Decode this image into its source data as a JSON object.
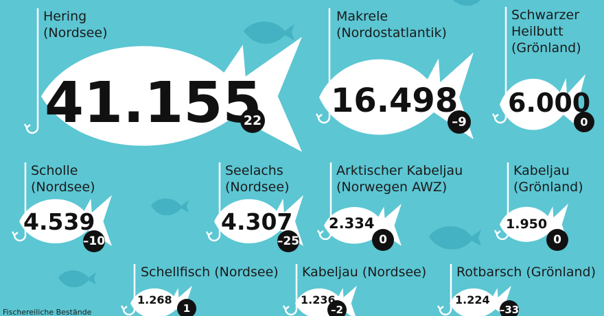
{
  "items": [
    {
      "label": [
        "Hering",
        "(Nordsee)"
      ],
      "value": "41.155",
      "change": "22"
    },
    {
      "label": [
        "Makrele",
        "(Nordostatlantik)"
      ],
      "value": "16.498",
      "change": "–9"
    },
    {
      "label": [
        "Schwarzer",
        "Heilbutt",
        "(Grönland)"
      ],
      "value": "6.000",
      "change": "0"
    },
    {
      "label": [
        "Scholle",
        "(Nordsee)"
      ],
      "value": "4.539",
      "change": "–10"
    },
    {
      "label": [
        "Seelachs",
        "(Nordsee)"
      ],
      "value": "4.307",
      "change": "–25"
    },
    {
      "label": [
        "Arktischer Kabeljau",
        "(Norwegen AWZ)"
      ],
      "value": "2.334",
      "change": "0"
    },
    {
      "label": [
        "Kabeljau",
        "(Grönland)"
      ],
      "value": "1.950",
      "change": "0"
    },
    {
      "label": [
        "Schellfisch (Nordsee)"
      ],
      "value": "1.268",
      "change": "1"
    },
    {
      "label": [
        "Kabeljau (Nordsee)"
      ],
      "value": "1.236",
      "change": "–2"
    },
    {
      "label": [
        "Rotbarsch (Grönland)"
      ],
      "value": "1.224",
      "change": "–33"
    }
  ],
  "footer": "Fischereiliche Bestände"
}
